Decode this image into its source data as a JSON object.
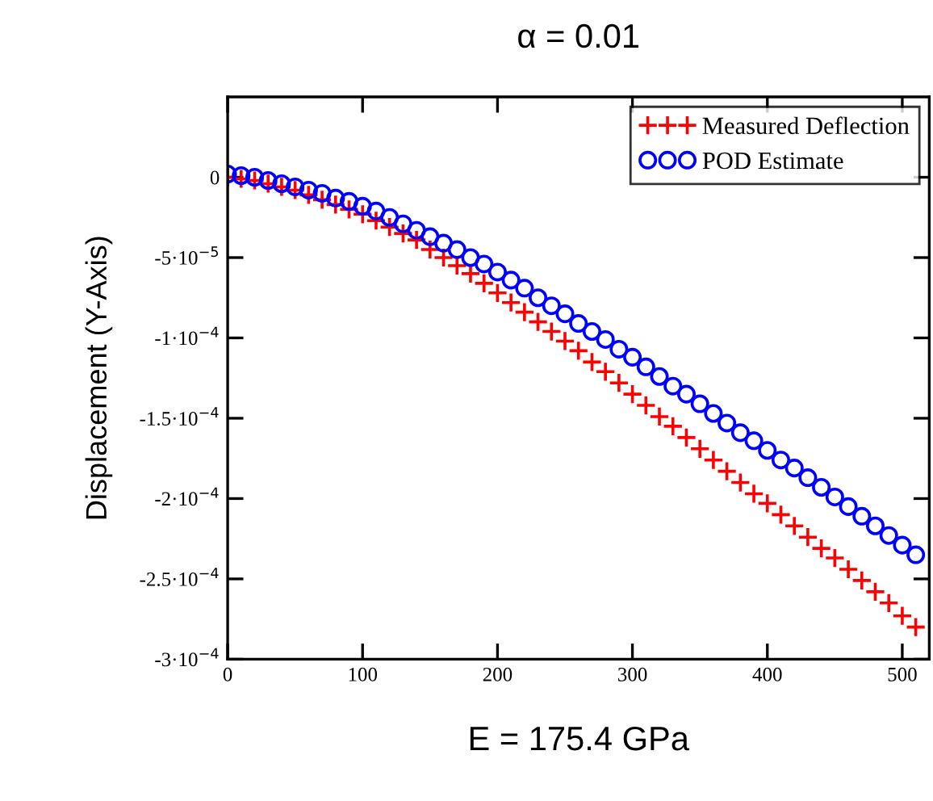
{
  "chart_data": {
    "type": "scatter",
    "title": "α = 0.01",
    "xlabel": "E = 175.4 GPa",
    "ylabel": "Displacement (Y-Axis)",
    "x": [
      0,
      10,
      20,
      30,
      40,
      50,
      60,
      70,
      80,
      90,
      100,
      110,
      120,
      130,
      140,
      150,
      160,
      170,
      180,
      190,
      200,
      210,
      220,
      230,
      240,
      250,
      260,
      270,
      280,
      290,
      300,
      310,
      320,
      330,
      340,
      350,
      360,
      370,
      380,
      390,
      400,
      410,
      420,
      430,
      440,
      450,
      460,
      470,
      480,
      490,
      500,
      510
    ],
    "series": [
      {
        "name": "Measured Deflection",
        "color": "#ff0000",
        "marker": "cross",
        "values": [
          0,
          -1e-06,
          -2e-06,
          -4e-06,
          -6e-06,
          -8e-06,
          -1.1e-05,
          -1.4e-05,
          -1.7e-05,
          -2e-05,
          -2.3e-05,
          -2.7e-05,
          -3.1e-05,
          -3.5e-05,
          -3.9e-05,
          -4.5e-05,
          -5e-05,
          -5.5e-05,
          -6e-05,
          -6.6e-05,
          -7.2e-05,
          -7.8e-05,
          -8.4e-05,
          -9e-05,
          -9.6e-05,
          -0.000102,
          -0.000108,
          -0.000115,
          -0.000121,
          -0.000128,
          -0.000135,
          -0.000142,
          -0.000149,
          -0.000155,
          -0.000162,
          -0.000169,
          -0.000176,
          -0.000183,
          -0.00019,
          -0.000197,
          -0.000203,
          -0.00021,
          -0.000217,
          -0.000224,
          -0.000231,
          -0.000237,
          -0.000244,
          -0.000251,
          -0.000258,
          -0.000265,
          -0.000273,
          -0.00028
        ]
      },
      {
        "name": "POD Estimate",
        "color": "#0000ff",
        "marker": "circle",
        "values": [
          2e-06,
          1e-06,
          0,
          -2e-06,
          -4e-06,
          -6e-06,
          -8e-06,
          -1e-05,
          -1.3e-05,
          -1.5e-05,
          -1.8e-05,
          -2.1e-05,
          -2.5e-05,
          -2.9e-05,
          -3.3e-05,
          -3.7e-05,
          -4.1e-05,
          -4.5e-05,
          -5e-05,
          -5.4e-05,
          -5.9e-05,
          -6.4e-05,
          -6.9e-05,
          -7.5e-05,
          -8e-05,
          -8.5e-05,
          -9.1e-05,
          -9.6e-05,
          -0.000101,
          -0.000107,
          -0.000112,
          -0.000118,
          -0.000124,
          -0.00013,
          -0.000135,
          -0.000141,
          -0.000147,
          -0.000153,
          -0.000159,
          -0.000164,
          -0.00017,
          -0.000176,
          -0.000181,
          -0.000187,
          -0.000193,
          -0.000199,
          -0.000205,
          -0.000211,
          -0.000217,
          -0.000223,
          -0.000229,
          -0.000235
        ]
      }
    ],
    "xlim": [
      0,
      520
    ],
    "xticks": [
      0,
      100,
      200,
      300,
      400,
      500
    ],
    "ylim": [
      -0.0003,
      5e-05
    ],
    "yticks": [
      0,
      {
        "value": -5e-05,
        "label": "-5·10$^{−5}$"
      },
      {
        "value": -0.0001,
        "label": "-1·10$^{−4}$"
      },
      {
        "value": -0.00015,
        "label": "-1.5·10$^{−4}$"
      },
      {
        "value": -0.0002,
        "label": "-2·10$^{−4}$"
      },
      {
        "value": -0.00025,
        "label": "-2.5·10$^{−4}$"
      },
      {
        "value": -0.0003,
        "label": "-3·10$^{−4}$"
      }
    ],
    "grid": false,
    "legend": "top right"
  }
}
